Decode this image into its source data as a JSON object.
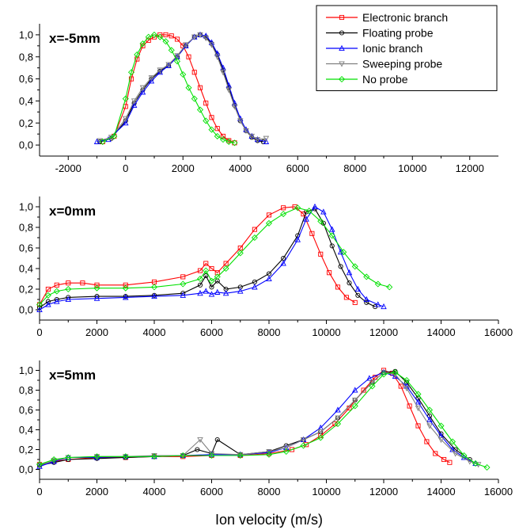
{
  "series_styles": [
    {
      "name": "Electronic branch",
      "color": "#ff0000",
      "marker": "square"
    },
    {
      "name": "Floating probe",
      "color": "#000000",
      "marker": "circle"
    },
    {
      "name": "Ionic branch",
      "color": "#0000ff",
      "marker": "triangle-up"
    },
    {
      "name": "Sweeping probe",
      "color": "#808080",
      "marker": "triangle-down"
    },
    {
      "name": "No probe",
      "color": "#00e000",
      "marker": "diamond"
    }
  ],
  "legend": {
    "placement": "top-right of top panel"
  },
  "chart_data": [
    {
      "type": "line",
      "panel_label": "x=-5mm",
      "xlabel": "",
      "ylabel": "",
      "xlim": [
        -3000,
        13000
      ],
      "ylim": [
        -0.1,
        1.1
      ],
      "xticks": [
        -2000,
        0,
        2000,
        4000,
        6000,
        8000,
        10000,
        12000
      ],
      "xtick_labels": [
        "-2000",
        "0",
        "2000",
        "4000",
        "6000",
        "8000",
        "10000",
        "12000"
      ],
      "yticks": [
        0.0,
        0.2,
        0.4,
        0.6,
        0.8,
        1.0
      ],
      "ytick_labels": [
        "0,0",
        "0,2",
        "0,4",
        "0,6",
        "0,8",
        "1,0"
      ],
      "series": [
        {
          "name": "Electronic branch",
          "x": [
            -800,
            -400,
            0,
            200,
            400,
            600,
            800,
            1000,
            1200,
            1400,
            1600,
            1800,
            2000,
            2200,
            2400,
            2600,
            2800,
            3000,
            3200,
            3400,
            3600,
            3800
          ],
          "y": [
            0.03,
            0.08,
            0.35,
            0.6,
            0.78,
            0.9,
            0.95,
            0.98,
            1.0,
            1.0,
            0.99,
            0.96,
            0.9,
            0.8,
            0.66,
            0.52,
            0.38,
            0.25,
            0.15,
            0.08,
            0.04,
            0.02
          ]
        },
        {
          "name": "Floating probe",
          "x": [
            -900,
            -500,
            0,
            300,
            600,
            900,
            1200,
            1500,
            1800,
            2100,
            2400,
            2600,
            2800,
            3000,
            3200,
            3400,
            3600,
            3800,
            4000,
            4200,
            4400,
            4600,
            4800
          ],
          "y": [
            0.03,
            0.06,
            0.22,
            0.38,
            0.5,
            0.6,
            0.67,
            0.72,
            0.8,
            0.9,
            0.98,
            1.0,
            0.98,
            0.92,
            0.82,
            0.68,
            0.52,
            0.36,
            0.22,
            0.13,
            0.07,
            0.04,
            0.03
          ]
        },
        {
          "name": "Ionic branch",
          "x": [
            -1000,
            -600,
            0,
            300,
            600,
            900,
            1200,
            1500,
            1800,
            2100,
            2400,
            2600,
            2800,
            3000,
            3200,
            3400,
            3600,
            3800,
            4000,
            4200,
            4400,
            4600,
            4900
          ],
          "y": [
            0.03,
            0.05,
            0.2,
            0.36,
            0.48,
            0.58,
            0.66,
            0.72,
            0.8,
            0.9,
            0.98,
            1.0,
            0.99,
            0.93,
            0.83,
            0.7,
            0.54,
            0.38,
            0.24,
            0.14,
            0.08,
            0.05,
            0.03
          ]
        },
        {
          "name": "Sweeping probe",
          "x": [
            -900,
            -500,
            0,
            300,
            600,
            900,
            1200,
            1500,
            1800,
            2100,
            2400,
            2600,
            2800,
            3000,
            3200,
            3400,
            3600,
            3800,
            4000,
            4200,
            4400,
            4600,
            4900
          ],
          "y": [
            0.04,
            0.07,
            0.24,
            0.4,
            0.52,
            0.61,
            0.68,
            0.73,
            0.81,
            0.91,
            0.98,
            1.0,
            0.97,
            0.91,
            0.8,
            0.66,
            0.5,
            0.35,
            0.22,
            0.13,
            0.08,
            0.05,
            0.06
          ]
        },
        {
          "name": "No probe",
          "x": [
            -800,
            -400,
            0,
            200,
            400,
            600,
            800,
            1000,
            1200,
            1400,
            1600,
            1800,
            2000,
            2200,
            2400,
            2600,
            2800,
            3000,
            3200,
            3400,
            3600,
            3800
          ],
          "y": [
            0.03,
            0.08,
            0.42,
            0.66,
            0.82,
            0.92,
            0.98,
            1.0,
            0.98,
            0.94,
            0.86,
            0.76,
            0.64,
            0.52,
            0.42,
            0.32,
            0.22,
            0.14,
            0.08,
            0.05,
            0.03,
            0.02
          ]
        }
      ]
    },
    {
      "type": "line",
      "panel_label": "x=0mm",
      "xlabel": "",
      "ylabel": "",
      "xlim": [
        0,
        16000
      ],
      "ylim": [
        -0.1,
        1.1
      ],
      "xticks": [
        0,
        2000,
        4000,
        6000,
        8000,
        10000,
        12000,
        14000,
        16000
      ],
      "xtick_labels": [
        "0",
        "2000",
        "4000",
        "6000",
        "8000",
        "10000",
        "12000",
        "14000",
        "16000"
      ],
      "yticks": [
        0.0,
        0.2,
        0.4,
        0.6,
        0.8,
        1.0
      ],
      "ytick_labels": [
        "0,0",
        "0,2",
        "0,4",
        "0,6",
        "0,8",
        "1,0"
      ],
      "series": [
        {
          "name": "Electronic branch",
          "x": [
            0,
            300,
            600,
            1000,
            1500,
            2000,
            3000,
            4000,
            5000,
            5600,
            5800,
            6000,
            6200,
            6500,
            7000,
            7500,
            8000,
            8500,
            8900,
            9200,
            9500,
            9800,
            10100,
            10400,
            10700,
            11000
          ],
          "y": [
            0.05,
            0.2,
            0.24,
            0.26,
            0.26,
            0.24,
            0.24,
            0.27,
            0.32,
            0.38,
            0.45,
            0.4,
            0.36,
            0.45,
            0.6,
            0.78,
            0.92,
            0.99,
            1.0,
            0.93,
            0.74,
            0.54,
            0.36,
            0.22,
            0.12,
            0.07
          ]
        },
        {
          "name": "Floating probe",
          "x": [
            0,
            300,
            600,
            1000,
            2000,
            3000,
            4000,
            5000,
            5600,
            5800,
            6000,
            6200,
            6500,
            7000,
            7500,
            8000,
            8500,
            9000,
            9300,
            9600,
            9900,
            10200,
            10500,
            10800,
            11100,
            11400,
            11700
          ],
          "y": [
            0.02,
            0.08,
            0.1,
            0.12,
            0.13,
            0.13,
            0.14,
            0.16,
            0.24,
            0.33,
            0.22,
            0.28,
            0.2,
            0.22,
            0.27,
            0.35,
            0.5,
            0.72,
            0.95,
            0.98,
            0.84,
            0.62,
            0.42,
            0.26,
            0.14,
            0.07,
            0.03
          ]
        },
        {
          "name": "Ionic branch",
          "x": [
            0,
            300,
            600,
            1000,
            2000,
            3000,
            4000,
            5000,
            5600,
            5800,
            6000,
            6200,
            6500,
            7000,
            7500,
            8000,
            8500,
            9000,
            9300,
            9600,
            9900,
            10200,
            10500,
            10800,
            11100,
            11400,
            11800,
            12000
          ],
          "y": [
            0.0,
            0.05,
            0.08,
            0.1,
            0.11,
            0.12,
            0.13,
            0.14,
            0.16,
            0.18,
            0.15,
            0.17,
            0.16,
            0.18,
            0.22,
            0.3,
            0.45,
            0.68,
            0.88,
            1.0,
            0.95,
            0.78,
            0.56,
            0.36,
            0.2,
            0.1,
            0.05,
            0.03
          ]
        },
        {
          "name": "No probe",
          "x": [
            0,
            300,
            600,
            1000,
            2000,
            3000,
            4000,
            5000,
            5600,
            5800,
            6000,
            6200,
            6500,
            7000,
            7500,
            8000,
            8500,
            9000,
            9400,
            9800,
            10200,
            10600,
            11000,
            11400,
            11800,
            12200
          ],
          "y": [
            0.05,
            0.14,
            0.18,
            0.2,
            0.21,
            0.21,
            0.22,
            0.25,
            0.3,
            0.38,
            0.28,
            0.32,
            0.4,
            0.55,
            0.7,
            0.84,
            0.93,
            0.99,
            0.96,
            0.86,
            0.72,
            0.56,
            0.42,
            0.32,
            0.25,
            0.22
          ]
        }
      ]
    },
    {
      "type": "line",
      "panel_label": "x=5mm",
      "xlabel": "Ion velocity (m/s)",
      "ylabel": "",
      "xlim": [
        0,
        16000
      ],
      "ylim": [
        -0.1,
        1.1
      ],
      "xticks": [
        0,
        2000,
        4000,
        6000,
        8000,
        10000,
        12000,
        14000,
        16000
      ],
      "xtick_labels": [
        "0",
        "2000",
        "4000",
        "6000",
        "8000",
        "10000",
        "12000",
        "14000",
        "16000"
      ],
      "yticks": [
        0.0,
        0.2,
        0.4,
        0.6,
        0.8,
        1.0
      ],
      "ytick_labels": [
        "0,0",
        "0,2",
        "0,4",
        "0,6",
        "0,8",
        "1,0"
      ],
      "series": [
        {
          "name": "Electronic branch",
          "x": [
            0,
            500,
            1000,
            2000,
            3000,
            4000,
            5000,
            6000,
            7000,
            8000,
            8800,
            9300,
            9800,
            10300,
            10800,
            11300,
            11700,
            12000,
            12300,
            12600,
            12900,
            13200,
            13500,
            13800,
            14100,
            14300
          ],
          "y": [
            0.05,
            0.08,
            0.1,
            0.12,
            0.12,
            0.13,
            0.13,
            0.14,
            0.14,
            0.16,
            0.2,
            0.25,
            0.34,
            0.46,
            0.62,
            0.8,
            0.93,
            1.0,
            0.97,
            0.84,
            0.64,
            0.44,
            0.28,
            0.16,
            0.1,
            0.07
          ]
        },
        {
          "name": "Floating probe",
          "x": [
            0,
            500,
            1000,
            2000,
            3000,
            4000,
            5000,
            5500,
            6000,
            6200,
            7000,
            8000,
            8600,
            9200,
            9800,
            10400,
            11000,
            11600,
            12000,
            12400,
            12800,
            13200,
            13600,
            14000,
            14500,
            15000
          ],
          "y": [
            0.04,
            0.07,
            0.1,
            0.11,
            0.12,
            0.13,
            0.14,
            0.2,
            0.16,
            0.3,
            0.15,
            0.18,
            0.24,
            0.3,
            0.38,
            0.52,
            0.7,
            0.88,
            0.98,
            0.99,
            0.88,
            0.72,
            0.54,
            0.36,
            0.2,
            0.1
          ]
        },
        {
          "name": "Ionic branch",
          "x": [
            0,
            500,
            1000,
            2000,
            3000,
            4000,
            5000,
            6000,
            7000,
            8000,
            8600,
            9200,
            9800,
            10400,
            11000,
            11500,
            12000,
            12400,
            12800,
            13200,
            13600,
            14000,
            14400,
            14800,
            15200
          ],
          "y": [
            0.03,
            0.08,
            0.12,
            0.12,
            0.13,
            0.13,
            0.14,
            0.15,
            0.15,
            0.17,
            0.22,
            0.3,
            0.42,
            0.6,
            0.8,
            0.92,
            0.98,
            0.94,
            0.84,
            0.68,
            0.5,
            0.34,
            0.2,
            0.12,
            0.06
          ]
        },
        {
          "name": "Sweeping probe",
          "x": [
            0,
            500,
            1000,
            2000,
            3000,
            4000,
            5000,
            5600,
            6000,
            7000,
            8000,
            8600,
            9200,
            9800,
            10400,
            11000,
            11600,
            12000,
            12400,
            12800,
            13200,
            13600,
            14000,
            14500,
            15000,
            15300
          ],
          "y": [
            0.04,
            0.09,
            0.12,
            0.13,
            0.13,
            0.14,
            0.14,
            0.3,
            0.16,
            0.15,
            0.18,
            0.22,
            0.3,
            0.38,
            0.52,
            0.7,
            0.88,
            0.98,
            0.96,
            0.82,
            0.62,
            0.44,
            0.3,
            0.16,
            0.08,
            0.05
          ]
        },
        {
          "name": "No probe",
          "x": [
            0,
            500,
            1000,
            2000,
            3000,
            4000,
            5000,
            6000,
            7000,
            8000,
            8600,
            9200,
            9800,
            10400,
            11000,
            11600,
            12000,
            12400,
            12800,
            13200,
            13600,
            14000,
            14400,
            14800,
            15200,
            15600
          ],
          "y": [
            0.05,
            0.1,
            0.12,
            0.13,
            0.13,
            0.13,
            0.14,
            0.14,
            0.14,
            0.15,
            0.18,
            0.24,
            0.32,
            0.46,
            0.64,
            0.84,
            0.96,
            0.98,
            0.9,
            0.76,
            0.6,
            0.44,
            0.28,
            0.14,
            0.06,
            0.02
          ]
        }
      ]
    }
  ]
}
